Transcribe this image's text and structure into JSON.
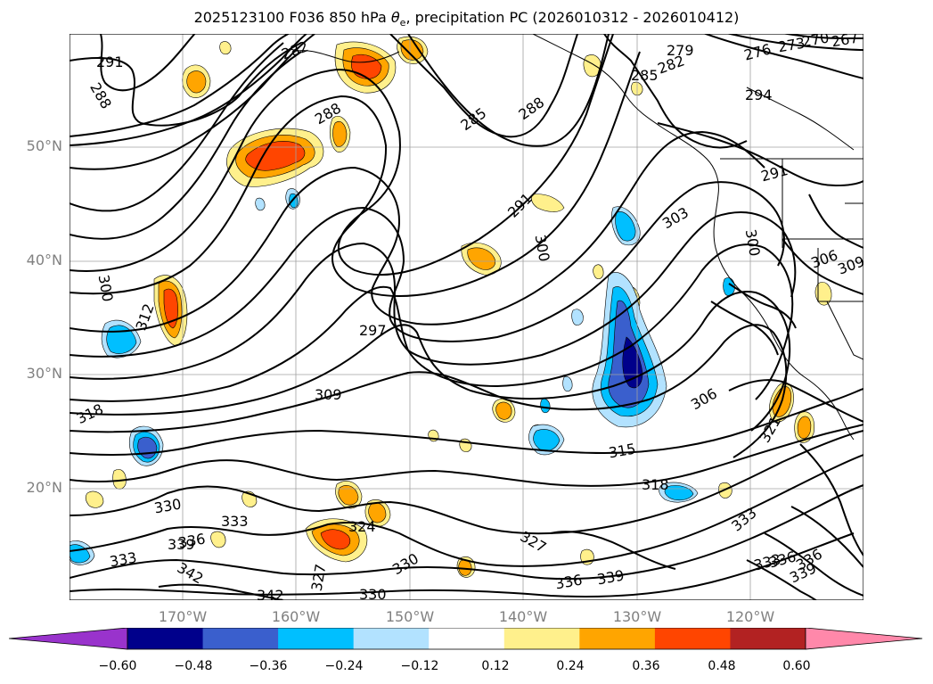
{
  "title_main": "2025123100 F036 850 hPa ",
  "title_theta_symbol": "θ",
  "title_theta_sub": "e",
  "title_rest": ", precipitation PC (2026010312 - 2026010412)",
  "lat_labels": [
    "50°N",
    "40°N",
    "30°N",
    "20°N"
  ],
  "lon_labels": [
    "170°W",
    "160°W",
    "150°W",
    "140°W",
    "130°W",
    "120°W"
  ],
  "colorbar": {
    "ticks": [
      "−0.60",
      "−0.48",
      "−0.36",
      "−0.24",
      "−0.12",
      "0.12",
      "0.24",
      "0.36",
      "0.48",
      "0.60"
    ],
    "colors": [
      "#9933cc",
      "#00008b",
      "#3a5fcd",
      "#00bfff",
      "#b2e2ff",
      "#ffffff",
      "#fff08c",
      "#ffa500",
      "#ff4500",
      "#b22222",
      "#ff88aa"
    ]
  },
  "contours": [
    {
      "text": "291"
    },
    {
      "text": "288"
    },
    {
      "text": "282"
    },
    {
      "text": "288"
    },
    {
      "text": "285"
    },
    {
      "text": "288"
    },
    {
      "text": "279"
    },
    {
      "text": "282"
    },
    {
      "text": "285"
    },
    {
      "text": "276"
    },
    {
      "text": "273"
    },
    {
      "text": "270"
    },
    {
      "text": "267"
    },
    {
      "text": "294"
    },
    {
      "text": "291"
    },
    {
      "text": "291"
    },
    {
      "text": "303"
    },
    {
      "text": "300"
    },
    {
      "text": "300"
    },
    {
      "text": "306"
    },
    {
      "text": "309"
    },
    {
      "text": "300"
    },
    {
      "text": "312"
    },
    {
      "text": "297"
    },
    {
      "text": "309"
    },
    {
      "text": "318"
    },
    {
      "text": "306"
    },
    {
      "text": "315"
    },
    {
      "text": "318"
    },
    {
      "text": "321"
    },
    {
      "text": "330"
    },
    {
      "text": "333"
    },
    {
      "text": "336"
    },
    {
      "text": "339"
    },
    {
      "text": "333"
    },
    {
      "text": "324"
    },
    {
      "text": "327"
    },
    {
      "text": "327"
    },
    {
      "text": "330"
    },
    {
      "text": "342"
    },
    {
      "text": "342"
    },
    {
      "text": "330"
    },
    {
      "text": "336"
    },
    {
      "text": "339"
    },
    {
      "text": "333"
    },
    {
      "text": "336"
    },
    {
      "text": "333"
    },
    {
      "text": "336"
    },
    {
      "text": "339"
    }
  ]
}
